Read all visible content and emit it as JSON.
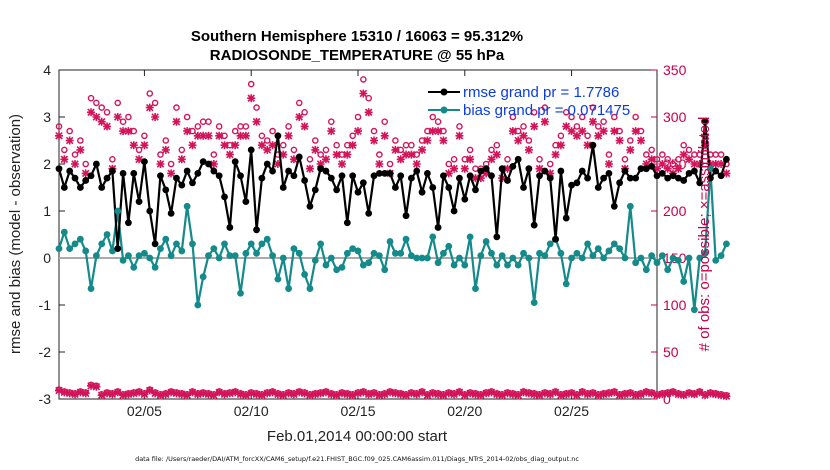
{
  "chart_data": {
    "type": "line",
    "title_line1": "Southern Hemisphere 15310 / 16063 = 95.312%",
    "title_line2": "RADIOSONDE_TEMPERATURE @ 55 hPa",
    "xlabel": "Feb.01,2014 00:00:00 start",
    "ylabel_left": "rmse and bias (model - observation)",
    "ylabel_right": "# of obs: o=possible; ×=assimilated",
    "left_ylim": [
      -3,
      4
    ],
    "right_ylim": [
      0,
      350
    ],
    "left_ticks": [
      "-3",
      "-2",
      "-1",
      "0",
      "1",
      "2",
      "3",
      "4"
    ],
    "right_ticks": [
      "0",
      "50",
      "100",
      "150",
      "200",
      "250",
      "300",
      "350"
    ],
    "x_range_days": [
      1,
      29
    ],
    "x_ticks": [
      {
        "day": 5,
        "label": "02/05"
      },
      {
        "day": 10,
        "label": "02/10"
      },
      {
        "day": 15,
        "label": "02/15"
      },
      {
        "day": 20,
        "label": "02/20"
      },
      {
        "day": 25,
        "label": "02/25"
      }
    ],
    "zero_line": 0,
    "legend_position": "top-right",
    "time_step_days": 0.25,
    "series": [
      {
        "name": "rmse",
        "legend": "rmse grand pr = 1.7786",
        "axis": "left",
        "color": "#000000",
        "values": [
          1.9,
          1.5,
          1.85,
          1.7,
          1.5,
          1.65,
          1.75,
          2.0,
          1.5,
          1.7,
          1.85,
          0.2,
          1.8,
          0.75,
          1.8,
          1.2,
          2.05,
          1.0,
          0.3,
          1.75,
          1.45,
          0.95,
          1.7,
          1.55,
          1.85,
          1.6,
          1.8,
          2.05,
          2.0,
          1.85,
          1.75,
          1.3,
          0.65,
          2.05,
          1.75,
          1.2,
          2.3,
          0.6,
          1.7,
          2.0,
          1.85,
          2.6,
          1.5,
          1.85,
          1.75,
          2.15,
          1.65,
          1.1,
          1.45,
          1.9,
          1.85,
          1.7,
          1.45,
          1.75,
          0.75,
          1.75,
          1.4,
          1.6,
          0.95,
          1.75,
          1.8,
          1.8,
          1.8,
          1.5,
          1.75,
          0.9,
          1.7,
          1.85,
          1.4,
          1.8,
          1.5,
          0.65,
          1.75,
          1.5,
          1.0,
          1.7,
          1.25,
          1.75,
          1.45,
          1.85,
          1.9,
          1.75,
          0.45,
          1.9,
          1.65,
          1.95,
          2.1,
          1.5,
          1.9,
          0.7,
          1.75,
          1.85,
          1.7,
          0.4,
          1.85,
          0.85,
          1.55,
          1.6,
          1.85,
          1.7,
          2.4,
          1.5,
          1.7,
          1.8,
          1.1,
          1.6,
          1.85,
          1.7,
          1.7,
          1.9,
          1.9,
          1.95,
          1.75,
          1.8,
          1.7,
          1.75,
          1.7,
          1.65,
          1.8,
          1.85,
          1.6,
          2.9,
          1.7,
          1.85,
          1.75,
          2.1
        ]
      },
      {
        "name": "bias",
        "legend": "bias grand pr = 0.071475",
        "axis": "left",
        "color": "#148a8a",
        "values": [
          0.2,
          0.55,
          0.2,
          0.3,
          0.4,
          0.15,
          -0.65,
          0.05,
          0.3,
          0.5,
          0.15,
          1.0,
          -0.05,
          0.05,
          -0.2,
          0.05,
          0.1,
          0.0,
          -0.2,
          0.2,
          0.4,
          0.05,
          0.3,
          0.15,
          1.1,
          0.3,
          -1.0,
          -0.4,
          0.05,
          0.2,
          0.0,
          0.3,
          0.05,
          0.05,
          -0.75,
          0.1,
          0.3,
          0.1,
          0.3,
          0.4,
          0.05,
          -0.45,
          0.0,
          -0.65,
          0.2,
          0.1,
          -0.35,
          -0.65,
          -0.05,
          0.3,
          -0.15,
          0.0,
          -0.25,
          -0.2,
          0.1,
          0.2,
          0.15,
          -0.15,
          -0.1,
          0.1,
          0.05,
          -0.25,
          0.35,
          0.1,
          0.1,
          0.4,
          0.05,
          0.0,
          0.0,
          0.0,
          0.45,
          -0.1,
          0.1,
          0.25,
          -0.15,
          0.0,
          -0.15,
          0.45,
          -0.65,
          0.05,
          0.35,
          0.1,
          -0.15,
          0.05,
          -0.15,
          0.0,
          -0.15,
          0.1,
          0.0,
          -0.95,
          0.1,
          0.05,
          0.3,
          0.4,
          0.1,
          -0.55,
          0.0,
          0.1,
          0.0,
          0.3,
          0.05,
          0.2,
          0.0,
          0.15,
          0.3,
          0.2,
          0.0,
          1.1,
          -0.1,
          0.0,
          -0.25,
          0.05,
          -0.1,
          0.05,
          -0.25,
          0.0,
          -0.05,
          -0.5,
          0.0,
          -1.1,
          0.0,
          0.1,
          1.9,
          -0.05,
          0.05,
          0.3
        ]
      },
      {
        "name": "obs possible",
        "axis": "right",
        "marker": "o",
        "color": "#d4145a",
        "values_high": [
          290,
          265,
          285,
          260,
          275,
          250,
          320,
          315,
          310,
          305,
          255,
          315,
          295,
          300,
          285,
          265,
          280,
          325,
          315,
          260,
          275,
          250,
          310,
          265,
          300,
          285,
          290,
          295,
          295,
          260,
          290,
          280,
          270,
          285,
          290,
          290,
          335,
          310,
          280,
          275,
          285,
          260,
          270,
          290,
          265,
          315,
          305,
          255,
          275,
          260,
          265,
          295,
          270,
          260,
          270,
          280,
          300,
          340,
          320,
          285,
          260,
          295,
          250,
          275,
          265,
          270,
          270,
          260,
          275,
          285,
          300,
          295,
          285,
          250,
          255,
          290,
          255,
          265,
          245,
          245,
          250,
          265,
          270,
          245,
          255,
          300,
          285,
          290,
          275,
          305,
          255,
          310,
          250,
          270,
          280,
          305,
          300,
          290,
          300,
          280,
          310,
          290,
          295,
          260,
          300,
          285,
          255,
          275,
          300,
          285,
          260,
          265,
          255,
          260,
          255,
          250,
          255,
          270,
          265,
          260,
          260,
          280,
          260,
          260,
          260,
          250
        ],
        "values_low": [
          10,
          8,
          7,
          6,
          8,
          7,
          15,
          14,
          5,
          7,
          6,
          8,
          5,
          6,
          7,
          8,
          6,
          10,
          7,
          5,
          6,
          8,
          7,
          6,
          5,
          8,
          6,
          7,
          6,
          5,
          8,
          6,
          7,
          8,
          6,
          5,
          7,
          6,
          5,
          7,
          8,
          6,
          5,
          7,
          6,
          8,
          7,
          5,
          6,
          7,
          8,
          6,
          5,
          7,
          6,
          5,
          7,
          8,
          6,
          7,
          5,
          6,
          8,
          7,
          6,
          5,
          7,
          6,
          8,
          5,
          7,
          6,
          5,
          7,
          6,
          8,
          5,
          7,
          6,
          5,
          7,
          8,
          6,
          5,
          7,
          6,
          5,
          8,
          7,
          6,
          5,
          7,
          6,
          8,
          5,
          6,
          7,
          5,
          8,
          6,
          7,
          5,
          6,
          7,
          8,
          5,
          6,
          7,
          5,
          6,
          8,
          7,
          5,
          6,
          7,
          8,
          6,
          5,
          7,
          6,
          8,
          5,
          7,
          6,
          5,
          4
        ]
      },
      {
        "name": "obs assimilated",
        "axis": "right",
        "marker": "x",
        "color": "#d4145a",
        "values_high": [
          280,
          255,
          275,
          250,
          265,
          240,
          305,
          300,
          295,
          290,
          245,
          300,
          285,
          285,
          270,
          255,
          270,
          310,
          300,
          250,
          265,
          240,
          295,
          255,
          285,
          270,
          280,
          280,
          280,
          250,
          280,
          270,
          260,
          270,
          280,
          280,
          320,
          295,
          270,
          265,
          270,
          250,
          260,
          280,
          255,
          300,
          290,
          245,
          265,
          250,
          255,
          285,
          260,
          250,
          260,
          270,
          285,
          325,
          305,
          275,
          250,
          280,
          240,
          265,
          255,
          260,
          260,
          250,
          265,
          275,
          285,
          285,
          275,
          240,
          245,
          280,
          245,
          255,
          235,
          235,
          240,
          255,
          260,
          235,
          245,
          285,
          275,
          280,
          265,
          290,
          245,
          295,
          240,
          260,
          270,
          290,
          285,
          280,
          285,
          270,
          295,
          280,
          285,
          250,
          285,
          275,
          245,
          265,
          285,
          275,
          250,
          255,
          245,
          250,
          245,
          240,
          245,
          260,
          255,
          250,
          250,
          270,
          250,
          250,
          250,
          240
        ],
        "values_low": [
          9,
          7,
          6,
          5,
          7,
          6,
          14,
          13,
          4,
          6,
          5,
          7,
          4,
          5,
          6,
          7,
          5,
          9,
          6,
          4,
          5,
          7,
          6,
          5,
          4,
          7,
          5,
          6,
          5,
          4,
          7,
          5,
          6,
          7,
          5,
          4,
          6,
          5,
          4,
          6,
          7,
          5,
          4,
          6,
          5,
          7,
          6,
          4,
          5,
          6,
          7,
          5,
          4,
          6,
          5,
          4,
          6,
          7,
          5,
          6,
          4,
          5,
          7,
          6,
          5,
          4,
          6,
          5,
          7,
          4,
          6,
          5,
          4,
          6,
          5,
          7,
          4,
          6,
          5,
          4,
          6,
          7,
          5,
          4,
          6,
          5,
          4,
          7,
          6,
          5,
          4,
          6,
          5,
          7,
          4,
          5,
          6,
          4,
          7,
          5,
          6,
          4,
          5,
          6,
          7,
          4,
          5,
          6,
          4,
          5,
          7,
          6,
          4,
          5,
          6,
          7,
          5,
          4,
          6,
          5,
          7,
          4,
          6,
          5,
          4,
          3
        ]
      }
    ],
    "footnote": "data file: /Users/raeder/DAI/ATM_forcXX/CAM6_setup/f.e21.FHIST_BGC.f09_025.CAM6assim.011/Diags_NTrS_2014-02/obs_diag_output.nc"
  }
}
